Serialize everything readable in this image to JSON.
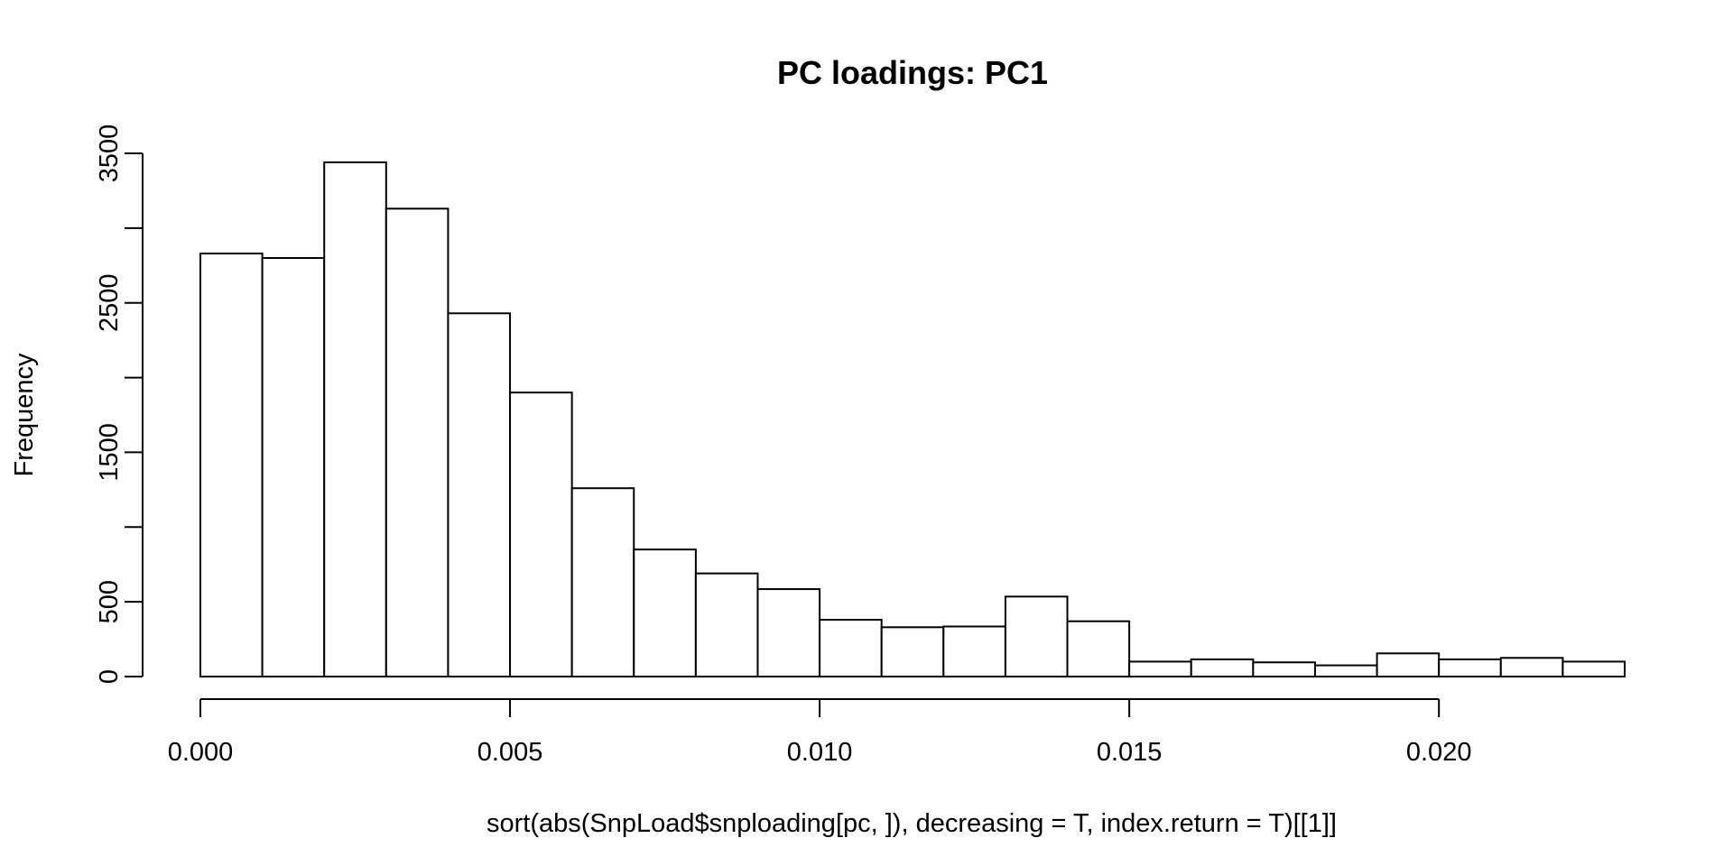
{
  "chart_data": {
    "type": "bar",
    "subtype": "histogram",
    "title": "PC loadings: PC1",
    "xlabel": "sort(abs(SnpLoad$snploading[pc, ]), decreasing = T, index.return = T)[[1]]",
    "ylabel": "Frequency",
    "bin_width": 0.001,
    "bin_start": 0.0,
    "values": [
      2830,
      2800,
      3440,
      3130,
      2430,
      1900,
      1260,
      850,
      690,
      585,
      380,
      330,
      335,
      535,
      370,
      100,
      115,
      95,
      75,
      155,
      115,
      125,
      100
    ],
    "xlim": [
      0.0,
      0.023
    ],
    "ylim": [
      0,
      3500
    ],
    "x_ticks": [
      0.0,
      0.005,
      0.01,
      0.015,
      0.02
    ],
    "x_tick_labels": [
      "0.000",
      "0.005",
      "0.010",
      "0.015",
      "0.020"
    ],
    "y_ticks": [
      0,
      500,
      1000,
      1500,
      2000,
      2500,
      3000,
      3500
    ],
    "y_tick_labels": [
      "0",
      "500",
      "",
      "1500",
      "",
      "2500",
      "",
      "3500"
    ],
    "grid": false,
    "legend": "none",
    "colors": {
      "bar_fill": "#ffffff",
      "bar_stroke": "#000000",
      "background": "#ffffff"
    }
  }
}
